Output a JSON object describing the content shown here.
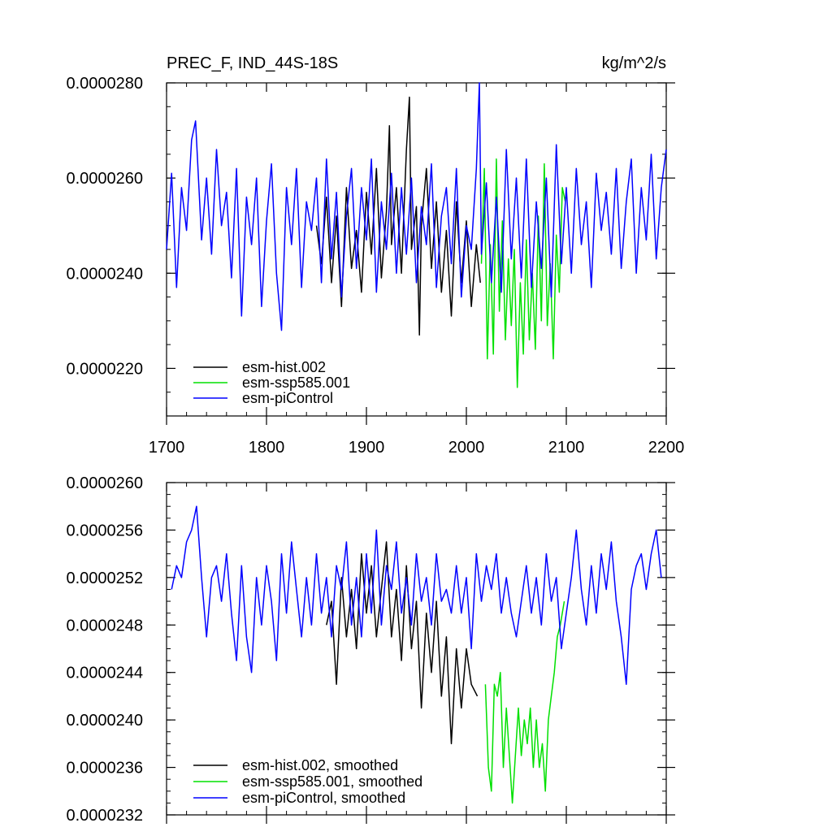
{
  "chart_data": [
    {
      "type": "line",
      "title": "PREC_F, IND_44S-18S",
      "units": "kg/m^2/s",
      "xlabel": "",
      "ylabel": "",
      "xlim": [
        1700,
        2200
      ],
      "ylim": [
        2.1e-05,
        2.8e-05
      ],
      "xticks": [
        1700,
        1800,
        1900,
        2000,
        2100,
        2200
      ],
      "xtick_labels": [
        "1700",
        "1800",
        "1900",
        "2000",
        "2100",
        "2200"
      ],
      "yticks": [
        2.2e-05,
        2.4e-05,
        2.6e-05,
        2.8e-05
      ],
      "ytick_labels": [
        "0.0000220",
        "0.0000240",
        "0.0000260",
        "0.0000280"
      ],
      "legend_position": "bottom-left",
      "series": [
        {
          "name": "esm-hist.002",
          "color": "#000000",
          "x": [
            1850,
            1855,
            1860,
            1865,
            1870,
            1875,
            1880,
            1885,
            1890,
            1895,
            1900,
            1905,
            1910,
            1915,
            1920,
            1923,
            1925,
            1930,
            1935,
            1940,
            1943,
            1945,
            1950,
            1953,
            1955,
            1960,
            1965,
            1970,
            1975,
            1980,
            1985,
            1990,
            1995,
            2000,
            2005,
            2010,
            2014
          ],
          "y": [
            2.5e-05,
            2.42e-05,
            2.56e-05,
            2.38e-05,
            2.52e-05,
            2.33e-05,
            2.58e-05,
            2.41e-05,
            2.49e-05,
            2.36e-05,
            2.57e-05,
            2.44e-05,
            2.62e-05,
            2.39e-05,
            2.53e-05,
            2.71e-05,
            2.46e-05,
            2.58e-05,
            2.4e-05,
            2.66e-05,
            2.77e-05,
            2.45e-05,
            2.54e-05,
            2.27e-05,
            2.5e-05,
            2.62e-05,
            2.41e-05,
            2.55e-05,
            2.36e-05,
            2.49e-05,
            2.31e-05,
            2.55e-05,
            2.38e-05,
            2.51e-05,
            2.33e-05,
            2.46e-05,
            2.38e-05
          ]
        },
        {
          "name": "esm-ssp585.001",
          "color": "#00e000",
          "x": [
            2015,
            2018,
            2021,
            2024,
            2027,
            2030,
            2033,
            2036,
            2039,
            2042,
            2045,
            2048,
            2051,
            2054,
            2057,
            2060,
            2063,
            2066,
            2069,
            2072,
            2075,
            2078,
            2081,
            2084,
            2087,
            2090,
            2093,
            2096,
            2099
          ],
          "y": [
            2.42e-05,
            2.62e-05,
            2.22e-05,
            2.46e-05,
            2.23e-05,
            2.64e-05,
            2.32e-05,
            2.51e-05,
            2.26e-05,
            2.43e-05,
            2.29e-05,
            2.45e-05,
            2.16e-05,
            2.38e-05,
            2.23e-05,
            2.47e-05,
            2.26e-05,
            2.4e-05,
            2.24e-05,
            2.52e-05,
            2.3e-05,
            2.63e-05,
            2.29e-05,
            2.42e-05,
            2.22e-05,
            2.48e-05,
            2.36e-05,
            2.58e-05,
            2.55e-05
          ]
        },
        {
          "name": "esm-piControl",
          "color": "#0000ff",
          "x": [
            1700,
            1705,
            1710,
            1715,
            1720,
            1725,
            1729,
            1735,
            1740,
            1745,
            1750,
            1755,
            1760,
            1765,
            1770,
            1775,
            1780,
            1785,
            1790,
            1795,
            1800,
            1805,
            1810,
            1815,
            1820,
            1825,
            1830,
            1835,
            1840,
            1845,
            1850,
            1855,
            1860,
            1865,
            1870,
            1875,
            1880,
            1885,
            1890,
            1895,
            1900,
            1905,
            1910,
            1915,
            1920,
            1925,
            1930,
            1935,
            1940,
            1945,
            1950,
            1955,
            1960,
            1965,
            1970,
            1975,
            1980,
            1985,
            1990,
            1995,
            2000,
            2005,
            2010,
            2013,
            2015,
            2020,
            2025,
            2030,
            2035,
            2040,
            2045,
            2050,
            2055,
            2060,
            2065,
            2070,
            2075,
            2080,
            2085,
            2090,
            2095,
            2100,
            2105,
            2110,
            2115,
            2120,
            2125,
            2130,
            2135,
            2140,
            2145,
            2150,
            2155,
            2160,
            2165,
            2170,
            2175,
            2180,
            2185,
            2190,
            2195,
            2200
          ],
          "y": [
            2.45e-05,
            2.61e-05,
            2.37e-05,
            2.58e-05,
            2.49e-05,
            2.68e-05,
            2.72e-05,
            2.47e-05,
            2.6e-05,
            2.44e-05,
            2.66e-05,
            2.5e-05,
            2.57e-05,
            2.39e-05,
            2.62e-05,
            2.31e-05,
            2.56e-05,
            2.46e-05,
            2.6e-05,
            2.33e-05,
            2.51e-05,
            2.63e-05,
            2.4e-05,
            2.28e-05,
            2.58e-05,
            2.46e-05,
            2.62e-05,
            2.37e-05,
            2.55e-05,
            2.49e-05,
            2.6e-05,
            2.38e-05,
            2.64e-05,
            2.43e-05,
            2.57e-05,
            2.35e-05,
            2.52e-05,
            2.62e-05,
            2.41e-05,
            2.58e-05,
            2.47e-05,
            2.64e-05,
            2.36e-05,
            2.55e-05,
            2.45e-05,
            2.61e-05,
            2.4e-05,
            2.58e-05,
            2.44e-05,
            2.6e-05,
            2.38e-05,
            2.54e-05,
            2.46e-05,
            2.63e-05,
            2.37e-05,
            2.52e-05,
            2.58e-05,
            2.42e-05,
            2.62e-05,
            2.35e-05,
            2.5e-05,
            2.45e-05,
            2.62e-05,
            2.8e-05,
            2.44e-05,
            2.59e-05,
            2.38e-05,
            2.56e-05,
            2.36e-05,
            2.66e-05,
            2.43e-05,
            2.6e-05,
            2.39e-05,
            2.64e-05,
            2.37e-05,
            2.55e-05,
            2.41e-05,
            2.6e-05,
            2.35e-05,
            2.67e-05,
            2.42e-05,
            2.58e-05,
            2.4e-05,
            2.62e-05,
            2.46e-05,
            2.55e-05,
            2.37e-05,
            2.61e-05,
            2.49e-05,
            2.57e-05,
            2.44e-05,
            2.62e-05,
            2.41e-05,
            2.55e-05,
            2.64e-05,
            2.4e-05,
            2.58e-05,
            2.47e-05,
            2.65e-05,
            2.43e-05,
            2.58e-05,
            2.66e-05
          ]
        }
      ]
    },
    {
      "type": "line",
      "title": "",
      "xlabel": "",
      "ylabel": "",
      "xlim": [
        1700,
        2200
      ],
      "ylim": [
        2.32e-05,
        2.6e-05
      ],
      "xticks": [
        1700,
        1800,
        1900,
        2000,
        2100,
        2200
      ],
      "yticks": [
        2.32e-05,
        2.36e-05,
        2.4e-05,
        2.44e-05,
        2.48e-05,
        2.52e-05,
        2.56e-05,
        2.6e-05
      ],
      "ytick_labels": [
        "0.0000232",
        "0.0000236",
        "0.0000240",
        "0.0000244",
        "0.0000248",
        "0.0000252",
        "0.0000256",
        "0.0000260"
      ],
      "legend_position": "bottom-left",
      "series": [
        {
          "name": "esm-hist.002, smoothed",
          "color": "#000000",
          "x": [
            1860,
            1865,
            1870,
            1875,
            1880,
            1885,
            1890,
            1895,
            1900,
            1905,
            1910,
            1915,
            1920,
            1925,
            1930,
            1935,
            1940,
            1945,
            1950,
            1955,
            1960,
            1965,
            1970,
            1975,
            1980,
            1985,
            1990,
            1995,
            2000,
            2005,
            2011
          ],
          "y": [
            2.48e-05,
            2.5e-05,
            2.43e-05,
            2.52e-05,
            2.47e-05,
            2.51e-05,
            2.46e-05,
            2.54e-05,
            2.49e-05,
            2.53e-05,
            2.47e-05,
            2.51e-05,
            2.55e-05,
            2.47e-05,
            2.51e-05,
            2.45e-05,
            2.53e-05,
            2.46e-05,
            2.5e-05,
            2.41e-05,
            2.49e-05,
            2.44e-05,
            2.5e-05,
            2.42e-05,
            2.47e-05,
            2.38e-05,
            2.46e-05,
            2.41e-05,
            2.46e-05,
            2.43e-05,
            2.42e-05
          ]
        },
        {
          "name": "esm-ssp585.001, smoothed",
          "color": "#00e000",
          "x": [
            2019,
            2022,
            2025,
            2028,
            2031,
            2034,
            2037,
            2040,
            2043,
            2046,
            2049,
            2052,
            2055,
            2058,
            2061,
            2064,
            2067,
            2070,
            2073,
            2076,
            2079,
            2082,
            2085,
            2088,
            2091,
            2094,
            2098
          ],
          "y": [
            2.43e-05,
            2.36e-05,
            2.34e-05,
            2.43e-05,
            2.42e-05,
            2.44e-05,
            2.36e-05,
            2.41e-05,
            2.37e-05,
            2.33e-05,
            2.37e-05,
            2.41e-05,
            2.37e-05,
            2.4e-05,
            2.38e-05,
            2.41e-05,
            2.36e-05,
            2.4e-05,
            2.36e-05,
            2.38e-05,
            2.34e-05,
            2.4e-05,
            2.42e-05,
            2.44e-05,
            2.47e-05,
            2.48e-05,
            2.5e-05
          ]
        },
        {
          "name": "esm-piControl, smoothed",
          "color": "#0000ff",
          "x": [
            1705,
            1710,
            1715,
            1720,
            1725,
            1730,
            1735,
            1740,
            1745,
            1750,
            1755,
            1760,
            1765,
            1770,
            1775,
            1780,
            1785,
            1790,
            1795,
            1800,
            1805,
            1810,
            1815,
            1820,
            1825,
            1830,
            1835,
            1840,
            1845,
            1850,
            1855,
            1860,
            1865,
            1870,
            1875,
            1880,
            1885,
            1890,
            1895,
            1900,
            1905,
            1910,
            1915,
            1920,
            1925,
            1930,
            1935,
            1940,
            1945,
            1950,
            1955,
            1960,
            1965,
            1970,
            1975,
            1980,
            1985,
            1990,
            1995,
            2000,
            2005,
            2010,
            2015,
            2020,
            2025,
            2030,
            2035,
            2040,
            2045,
            2050,
            2055,
            2060,
            2065,
            2070,
            2075,
            2080,
            2085,
            2090,
            2095,
            2100,
            2105,
            2110,
            2115,
            2120,
            2125,
            2130,
            2135,
            2140,
            2145,
            2150,
            2155,
            2160,
            2165,
            2170,
            2175,
            2180,
            2185,
            2190,
            2195
          ],
          "y": [
            2.51e-05,
            2.53e-05,
            2.52e-05,
            2.55e-05,
            2.56e-05,
            2.58e-05,
            2.52e-05,
            2.47e-05,
            2.52e-05,
            2.53e-05,
            2.5e-05,
            2.54e-05,
            2.49e-05,
            2.45e-05,
            2.53e-05,
            2.47e-05,
            2.44e-05,
            2.52e-05,
            2.48e-05,
            2.53e-05,
            2.5e-05,
            2.45e-05,
            2.54e-05,
            2.49e-05,
            2.55e-05,
            2.51e-05,
            2.47e-05,
            2.52e-05,
            2.48e-05,
            2.54e-05,
            2.49e-05,
            2.52e-05,
            2.47e-05,
            2.53e-05,
            2.51e-05,
            2.55e-05,
            2.48e-05,
            2.52e-05,
            2.47e-05,
            2.54e-05,
            2.49e-05,
            2.56e-05,
            2.48e-05,
            2.53e-05,
            2.51e-05,
            2.55e-05,
            2.49e-05,
            2.52e-05,
            2.48e-05,
            2.54e-05,
            2.5e-05,
            2.52e-05,
            2.48e-05,
            2.54e-05,
            2.5e-05,
            2.51e-05,
            2.49e-05,
            2.53e-05,
            2.49e-05,
            2.52e-05,
            2.46e-05,
            2.54e-05,
            2.5e-05,
            2.53e-05,
            2.51e-05,
            2.54e-05,
            2.49e-05,
            2.52e-05,
            2.49e-05,
            2.47e-05,
            2.5e-05,
            2.53e-05,
            2.49e-05,
            2.52e-05,
            2.48e-05,
            2.54e-05,
            2.5e-05,
            2.52e-05,
            2.46e-05,
            2.49e-05,
            2.52e-05,
            2.56e-05,
            2.51e-05,
            2.48e-05,
            2.53e-05,
            2.49e-05,
            2.54e-05,
            2.51e-05,
            2.55e-05,
            2.5e-05,
            2.47e-05,
            2.43e-05,
            2.51e-05,
            2.53e-05,
            2.54e-05,
            2.51e-05,
            2.54e-05,
            2.56e-05,
            2.52e-05
          ]
        }
      ]
    }
  ]
}
